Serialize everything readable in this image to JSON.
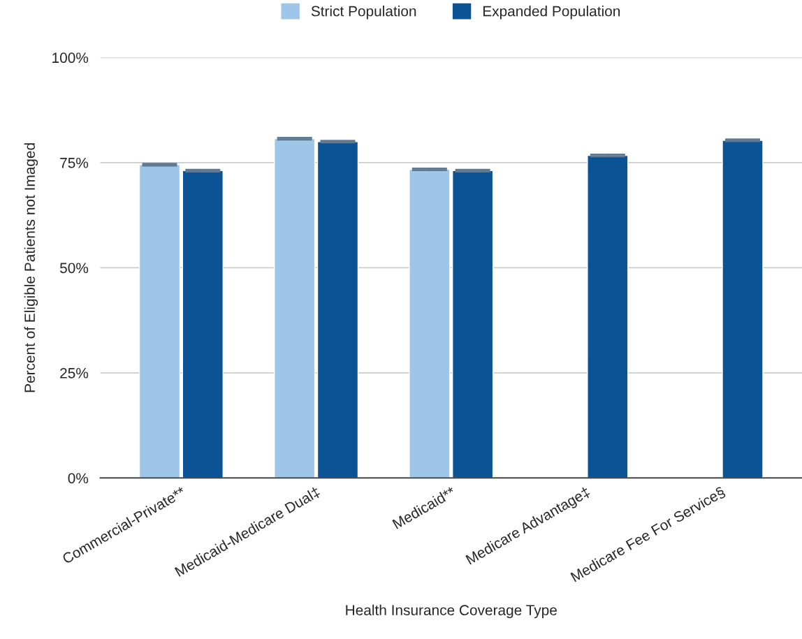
{
  "chart_data": {
    "type": "bar",
    "xlabel": "Health Insurance Coverage Type",
    "ylabel": "Percent of Eligible Patients not Imaged",
    "categories": [
      "Commercial-Private**",
      "Medicaid-Medicare Dual‡",
      "Medicaid**",
      "Medicare Advantage‡",
      "Medicare Fee For Service§"
    ],
    "series": [
      {
        "name": "Strict Population",
        "color": "#9fc5e8",
        "values": [
          74.5,
          80.7,
          73.4,
          null,
          null
        ],
        "errors": [
          0.2,
          0.2,
          0.2,
          null,
          null
        ]
      },
      {
        "name": "Expanded Population",
        "color": "#0b5394",
        "values": [
          73.1,
          80.0,
          73.1,
          76.7,
          80.3
        ],
        "errors": [
          0.2,
          0.2,
          0.2,
          0.2,
          0.2
        ]
      }
    ],
    "ylim": [
      0,
      100
    ],
    "yticks": [
      {
        "value": 0,
        "label": "0%"
      },
      {
        "value": 25,
        "label": "25%"
      },
      {
        "value": 50,
        "label": "50%"
      },
      {
        "value": 75,
        "label": "75%"
      },
      {
        "value": 100,
        "label": "100%"
      }
    ],
    "grid": "y",
    "legend": "top"
  }
}
